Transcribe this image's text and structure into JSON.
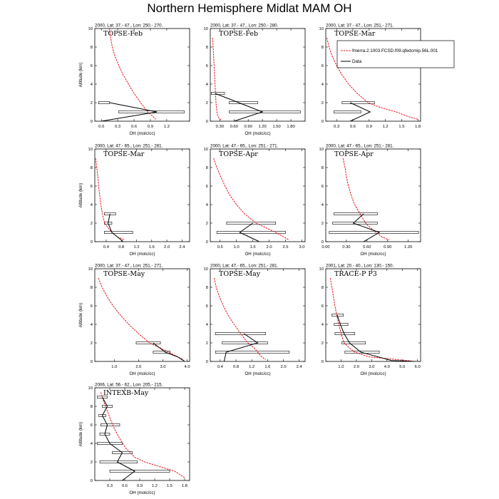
{
  "title": "Northern Hemisphere Midlat MAM OH",
  "legend": {
    "model_label": "fmerra.2.1003.FCSD.f09.qfedcmip.56L.001",
    "data_label": "Data",
    "model_color": "#e8141c",
    "data_color": "#000000"
  },
  "chart_data": [
    {
      "type": "line",
      "title": "2000, Lat: 37.- 47., Lon: 250.- 270.",
      "campaign": "TOPSE-Feb",
      "xlabel": "OH (molc/cc)",
      "ylabel": "Altitude (km)",
      "xlim": [
        -0.12,
        1.62
      ],
      "ylim": [
        0,
        10
      ],
      "xticks": [
        "0.0",
        "0.3",
        "0.6",
        "0.9",
        "1.2"
      ],
      "xtick_values": [
        0.0,
        0.3,
        0.6,
        0.9,
        1.2
      ],
      "yticks": [
        0,
        2,
        4,
        6,
        8,
        10
      ],
      "model": {
        "x": [
          0.15,
          0.17,
          0.2,
          0.25,
          0.32,
          0.4,
          0.5,
          0.6,
          0.72,
          0.85,
          0.95,
          1.0
        ],
        "y": [
          10,
          9,
          8,
          7,
          6,
          5,
          4,
          3,
          2,
          1,
          0.5,
          0.2
        ]
      },
      "data": {
        "x": [
          0.15,
          1.02,
          0.0
        ],
        "y": [
          2,
          1,
          0
        ]
      },
      "error_bars": [
        {
          "y": 2,
          "lo": -0.05,
          "hi": 0.15
        },
        {
          "y": 1,
          "lo": 0.32,
          "hi": 1.52
        }
      ]
    },
    {
      "type": "line",
      "title": "2000, Lat: 37.- 47., Lon: 250.- 280.",
      "campaign": "TOPSE-Feb",
      "xlabel": "OH (molc/cc)",
      "ylabel": "",
      "xlim": [
        0.1,
        2.1
      ],
      "ylim": [
        0,
        10
      ],
      "xticks": [
        "0.30",
        "0.60",
        "0.90",
        "1.20",
        "1.50",
        "1.80"
      ],
      "xtick_values": [
        0.3,
        0.6,
        0.9,
        1.2,
        1.5,
        1.8
      ],
      "yticks": [
        0,
        2,
        4,
        6,
        8,
        10
      ],
      "model": {
        "x": [
          0.15,
          0.16,
          0.17,
          0.18,
          0.19,
          0.2,
          0.21,
          0.22,
          0.23,
          0.24,
          0.26,
          0.32
        ],
        "y": [
          9,
          8,
          7,
          6,
          5,
          4,
          3,
          2,
          1.5,
          1,
          0.5,
          0.15
        ]
      },
      "data": {
        "x": [
          0.2,
          1.2,
          0.6
        ],
        "y": [
          3,
          1,
          0
        ]
      },
      "error_bars": [
        {
          "y": 3,
          "lo": 0.12,
          "hi": 0.4
        },
        {
          "y": 2,
          "lo": 0.5,
          "hi": 1.1
        },
        {
          "y": 1,
          "lo": 0.5,
          "hi": 2.0
        }
      ]
    },
    {
      "type": "line",
      "title": "2000, Lat: 37.- 47., Lon: 251.- 271.",
      "campaign": "TOPSE-Mar",
      "xlabel": "",
      "ylabel": "",
      "xlim": [
        0.1,
        1.85
      ],
      "ylim": [
        0,
        10
      ],
      "xticks": [
        "0.3",
        "0.6",
        "0.9",
        "1.2",
        "1.5",
        "1.8"
      ],
      "xtick_values": [
        0.3,
        0.6,
        0.9,
        1.2,
        1.5,
        1.8
      ],
      "yticks": [
        0,
        2,
        4,
        6,
        8,
        10
      ],
      "model": {
        "x": [
          0.12,
          0.16,
          0.22,
          0.3,
          0.4,
          0.52,
          0.68,
          0.88,
          1.1,
          1.4,
          1.62,
          1.8
        ],
        "y": [
          9,
          8,
          7,
          6,
          5,
          4,
          3,
          2,
          1.5,
          1,
          0.5,
          0.2
        ]
      },
      "data": {
        "x": [
          0.55,
          0.92,
          0.55
        ],
        "y": [
          2,
          1,
          0
        ]
      },
      "error_bars": [
        {
          "y": 2,
          "lo": 0.4,
          "hi": 1.0
        },
        {
          "y": 1,
          "lo": 0.25,
          "hi": 0.75
        }
      ]
    },
    {
      "type": "line",
      "title": "2000, Lat: 47.- 65., Lon: 251.- 281.",
      "campaign": "TOPSE-Mar",
      "xlabel": "OH (molc/cc)",
      "ylabel": "Altitude (km)",
      "xlim": [
        0.1,
        2.6
      ],
      "ylim": [
        0,
        10
      ],
      "xticks": [
        "0.4",
        "0.8",
        "1.2",
        "1.6",
        "2.0",
        "2.4"
      ],
      "xtick_values": [
        0.4,
        0.8,
        1.2,
        1.6,
        2.0,
        2.4
      ],
      "yticks": [
        0,
        2,
        4,
        6,
        8,
        10
      ],
      "model": {
        "x": [
          0.12,
          0.15,
          0.18,
          0.2,
          0.23,
          0.26,
          0.3,
          0.36,
          0.45,
          0.55,
          0.7,
          0.88
        ],
        "y": [
          9,
          8,
          7,
          6,
          5,
          4,
          3,
          2,
          1.5,
          1,
          0.5,
          0.2
        ]
      },
      "data": {
        "x": [
          0.5,
          0.45,
          0.55,
          0.85
        ],
        "y": [
          3,
          2,
          1,
          0
        ]
      },
      "error_bars": [
        {
          "y": 3,
          "lo": 0.35,
          "hi": 0.65
        },
        {
          "y": 2,
          "lo": 0.35,
          "hi": 0.55
        },
        {
          "y": 1,
          "lo": 0.35,
          "hi": 1.1
        }
      ]
    },
    {
      "type": "line",
      "title": "2000, Lat: 47.- 65., Lon: 251.- 271.",
      "campaign": "TOPSE-Apr",
      "xlabel": "OH (molc/cc)",
      "ylabel": "",
      "xlim": [
        0.2,
        3.1
      ],
      "ylim": [
        0,
        10
      ],
      "xticks": [
        "0.5",
        "1.0",
        "1.5",
        "2.0",
        "2.5",
        "3.0"
      ],
      "xtick_values": [
        0.5,
        1.0,
        1.5,
        2.0,
        2.5,
        3.0
      ],
      "yticks": [
        0,
        2,
        4,
        6,
        8,
        10
      ],
      "model": {
        "x": [
          0.3,
          0.4,
          0.52,
          0.65,
          0.8,
          1.0,
          1.25,
          1.6,
          1.9,
          2.2,
          2.45,
          2.6
        ],
        "y": [
          9,
          8,
          7,
          6,
          5,
          4,
          3,
          2,
          1.5,
          1,
          0.5,
          0.2
        ]
      },
      "data": {
        "x": [
          1.5,
          1.1,
          1.7
        ],
        "y": [
          2,
          1,
          0
        ]
      },
      "error_bars": [
        {
          "y": 2,
          "lo": 0.7,
          "hi": 2.2
        },
        {
          "y": 1,
          "lo": 0.4,
          "hi": 2.5
        }
      ]
    },
    {
      "type": "line",
      "title": "2000, Lat: 47.- 65., Lon: 251.- 281.",
      "campaign": "TOPSE-Apr",
      "xlabel": "OH (molc/cc)",
      "ylabel": "",
      "xlim": [
        0.0,
        1.38
      ],
      "ylim": [
        0,
        10
      ],
      "xticks": [
        "0.00",
        "0.30",
        "0.60",
        "0.90",
        "1.20"
      ],
      "xtick_values": [
        0.0,
        0.3,
        0.6,
        0.9,
        1.2
      ],
      "yticks": [
        0,
        2,
        4,
        6,
        8,
        10
      ],
      "model": {
        "x": [
          0.25,
          0.28,
          0.3,
          0.33,
          0.37,
          0.42,
          0.5,
          0.58,
          0.65,
          0.73,
          0.82,
          0.92
        ],
        "y": [
          9,
          8,
          7,
          6,
          5,
          4,
          3,
          2,
          1.5,
          1,
          0.5,
          0.2
        ]
      },
      "data": {
        "x": [
          0.55,
          0.4,
          0.78,
          0.55
        ],
        "y": [
          3,
          2,
          1,
          0
        ]
      },
      "error_bars": [
        {
          "y": 3,
          "lo": 0.12,
          "hi": 0.75
        },
        {
          "y": 2,
          "lo": 0.1,
          "hi": 0.75
        },
        {
          "y": 1,
          "lo": 0.05,
          "hi": 1.35
        }
      ]
    },
    {
      "type": "line",
      "title": "2000, Lat: 37.- 47., Lon: 251.- 271.",
      "campaign": "TOPSE-May",
      "xlabel": "OH (molc/cc)",
      "ylabel": "Altitude (km)",
      "xlim": [
        0.2,
        4.1
      ],
      "ylim": [
        0,
        10
      ],
      "xticks": [
        "1.0",
        "2.0",
        "3.0",
        "4.0"
      ],
      "xtick_values": [
        1.0,
        2.0,
        3.0,
        4.0
      ],
      "yticks": [
        0,
        2,
        4,
        6,
        8,
        10
      ],
      "model": {
        "x": [
          0.35,
          0.5,
          0.7,
          0.95,
          1.25,
          1.6,
          2.0,
          2.45,
          2.85,
          3.25,
          3.6,
          3.85
        ],
        "y": [
          9,
          8,
          7,
          6,
          5,
          4,
          3,
          2,
          1.5,
          1,
          0.5,
          0.2
        ]
      },
      "data": {
        "x": [
          2.6,
          3.1,
          3.6,
          3.9
        ],
        "y": [
          2,
          1,
          0.5,
          0
        ]
      },
      "error_bars": [
        {
          "y": 2,
          "lo": 1.9,
          "hi": 2.9
        },
        {
          "y": 1,
          "lo": 2.6,
          "hi": 3.3
        }
      ]
    },
    {
      "type": "line",
      "title": "2000, Lat: 47.- 65., Lon: 251.- 281.",
      "campaign": "TOPSE-May",
      "xlabel": "OH (molc/cc)",
      "ylabel": "",
      "xlim": [
        0.15,
        2.55
      ],
      "ylim": [
        0,
        10
      ],
      "xticks": [
        "0.4",
        "0.8",
        "1.2",
        "1.6",
        "2.0",
        "2.4"
      ],
      "xtick_values": [
        0.4,
        0.8,
        1.2,
        1.6,
        2.0,
        2.4
      ],
      "yticks": [
        0,
        2,
        4,
        6,
        8,
        10
      ],
      "model": {
        "x": [
          0.25,
          0.3,
          0.38,
          0.48,
          0.6,
          0.75,
          0.92,
          1.1,
          1.25,
          1.35,
          1.45,
          1.55
        ],
        "y": [
          9,
          8,
          7,
          6,
          5,
          4,
          3,
          2,
          1.5,
          1,
          0.5,
          0.2
        ]
      },
      "data": {
        "x": [
          1.0,
          1.35,
          0.55,
          0.5
        ],
        "y": [
          3,
          2,
          1,
          0
        ]
      },
      "error_bars": [
        {
          "y": 3,
          "lo": 0.28,
          "hi": 1.55
        },
        {
          "y": 2,
          "lo": 0.45,
          "hi": 1.6
        },
        {
          "y": 1,
          "lo": 0.28,
          "hi": 2.15
        }
      ]
    },
    {
      "type": "line",
      "title": "2001, Lat: 20.- 40., Lon: 130.- 150.",
      "campaign": "TRACE-P P3",
      "xlabel": "OH (molc/cc)",
      "ylabel": "",
      "xlim": [
        0.0,
        6.2
      ],
      "ylim": [
        0,
        10
      ],
      "xticks": [
        "1.0",
        "2.0",
        "3.0",
        "4.0",
        "5.0",
        "6.0"
      ],
      "xtick_values": [
        1.0,
        2.0,
        3.0,
        4.0,
        5.0,
        6.0
      ],
      "yticks": [
        0,
        2,
        4,
        6,
        8,
        10
      ],
      "model": {
        "x": [
          0.3,
          0.4,
          0.5,
          0.6,
          0.72,
          0.85,
          1.0,
          1.2,
          1.5,
          1.9,
          2.8,
          5.6
        ],
        "y": [
          9,
          8,
          7,
          6,
          5,
          4,
          3,
          2,
          1.5,
          1,
          0.5,
          0.05
        ]
      },
      "data": {
        "x": [
          0.75,
          0.95,
          1.2,
          1.55,
          2.3,
          4.3,
          5.9
        ],
        "y": [
          5,
          4,
          3,
          2,
          1,
          0.1,
          0
        ]
      },
      "error_bars": [
        {
          "y": 5,
          "lo": 0.4,
          "hi": 1.15
        },
        {
          "y": 4,
          "lo": 0.55,
          "hi": 1.45
        },
        {
          "y": 3,
          "lo": 0.6,
          "hi": 1.9
        },
        {
          "y": 2,
          "lo": 1.05,
          "hi": 2.6
        },
        {
          "y": 1,
          "lo": 1.25,
          "hi": 3.5
        }
      ]
    },
    {
      "type": "line",
      "title": "2006, Lat: 56.- 62., Lon: 205.- 215.",
      "campaign": "INTEXB-May",
      "xlabel": "OH (molc/cc)",
      "ylabel": "Altitude (km)",
      "xlim": [
        0.0,
        1.9
      ],
      "ylim": [
        0,
        10
      ],
      "xticks": [
        "0.3",
        "0.6",
        "0.9",
        "1.2",
        "1.5",
        "1.8"
      ],
      "xtick_values": [
        0.3,
        0.6,
        0.9,
        1.2,
        1.5,
        1.8
      ],
      "yticks": [
        0,
        2,
        4,
        6,
        8,
        10
      ],
      "model": {
        "x": [
          0.12,
          0.18,
          0.25,
          0.32,
          0.4,
          0.5,
          0.62,
          0.8,
          1.0,
          1.3,
          1.6,
          1.8
        ],
        "y": [
          9.5,
          8.5,
          7.5,
          6.5,
          5.5,
          4.5,
          3.5,
          2.5,
          2.0,
          1.5,
          1.0,
          0.3
        ]
      },
      "data": {
        "x": [
          0.15,
          0.25,
          0.15,
          0.25,
          0.2,
          0.3,
          0.55,
          0.45,
          0.8,
          0.55
        ],
        "y": [
          9,
          8,
          7,
          6,
          5,
          4,
          3,
          2,
          1,
          0
        ]
      },
      "error_bars": [
        {
          "y": 9,
          "lo": 0.05,
          "hi": 0.25
        },
        {
          "y": 8,
          "lo": 0.15,
          "hi": 0.35
        },
        {
          "y": 7,
          "lo": 0.08,
          "hi": 0.22
        },
        {
          "y": 6,
          "lo": 0.12,
          "hi": 0.5
        },
        {
          "y": 5,
          "lo": 0.1,
          "hi": 0.3
        },
        {
          "y": 4,
          "lo": 0.05,
          "hi": 0.55
        },
        {
          "y": 3,
          "lo": 0.35,
          "hi": 0.75
        },
        {
          "y": 2,
          "lo": 0.1,
          "hi": 0.85
        },
        {
          "y": 1,
          "lo": 0.3,
          "hi": 1.5
        }
      ]
    }
  ]
}
